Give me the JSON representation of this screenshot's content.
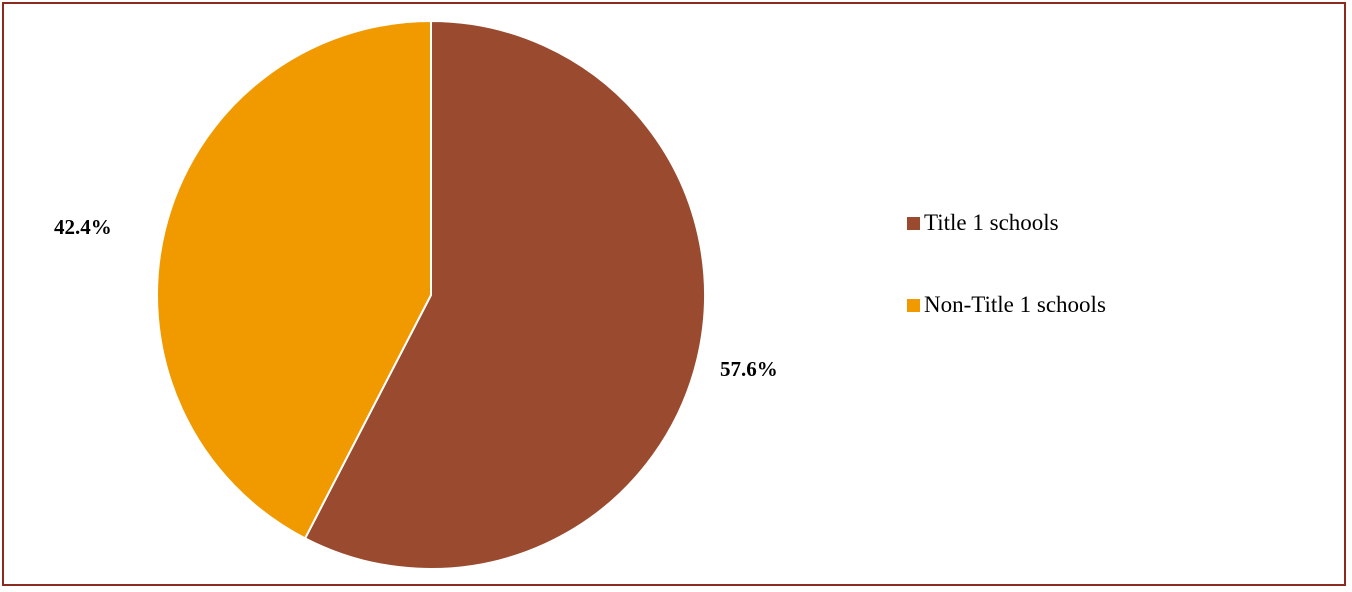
{
  "chart_data": {
    "type": "pie",
    "title": "",
    "categories": [
      "Title 1 schools",
      "Non-Title 1 schools"
    ],
    "values": [
      57.6,
      42.4
    ],
    "data_labels": [
      "57.6%",
      "42.4%"
    ],
    "colors": [
      "#9a4a2e",
      "#f09a00"
    ],
    "start_angle": "12 o'clock, clockwise",
    "legend_placement": "right"
  },
  "frame_color": "#8b2a1e"
}
